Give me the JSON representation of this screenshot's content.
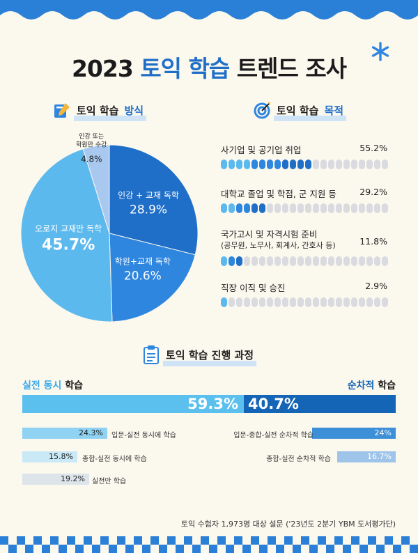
{
  "title": {
    "year": "2023",
    "accent": "토익 학습",
    "rest": "트렌드 조사"
  },
  "sections": {
    "method": {
      "plain": "토익 학습",
      "highlight": "방식"
    },
    "purpose": {
      "plain": "토익 학습",
      "highlight": "목적"
    },
    "process": {
      "text": "토익 학습 진행 과정"
    }
  },
  "colors": {
    "accent": "#1f6fc8",
    "pie": [
      "#1f6fc8",
      "#2f86df",
      "#5cb9ee",
      "#a8c8f0"
    ],
    "dot_active": [
      "#5cb9ee",
      "#2f86df",
      "#1f6fc8"
    ],
    "dot_inactive": "#dadbe0",
    "simultaneous": "#5cc0ee",
    "sequential": "#1565b7"
  },
  "chart_data": [
    {
      "type": "pie",
      "title": "토익 학습 방식",
      "slices": [
        {
          "label": "인강 + 교재 독학",
          "value": 28.9,
          "value_label": "28.9%"
        },
        {
          "label": "학원+교재 독학",
          "value": 20.6,
          "value_label": "20.6%"
        },
        {
          "label": "오로지 교재만 독학",
          "value": 45.7,
          "value_label": "45.7%"
        },
        {
          "label_line1": "인강 또는",
          "label_line2": "학원만 수강",
          "value": 4.8,
          "value_label": "4.8%"
        }
      ]
    },
    {
      "type": "bar",
      "title": "토익 학습 목적",
      "items": [
        {
          "label": "사기업 및 공기업 취업",
          "value": 55.2,
          "value_label": "55.2%"
        },
        {
          "label": "대학교 졸업 및 학점, 군 지원 등",
          "value": 29.2,
          "value_label": "29.2%"
        },
        {
          "label": "국가고시 및 자격시험 준비",
          "sub": "(공무원, 노무사, 회계사, 간호사 등)",
          "value": 11.8,
          "value_label": "11.8%"
        },
        {
          "label": "직장 이직 및 승진",
          "value": 2.9,
          "value_label": "2.9%"
        }
      ]
    },
    {
      "type": "bar",
      "title": "토익 학습 진행 과정",
      "split": {
        "left": {
          "label_highlight": "실전 동시",
          "label_rest": "학습",
          "value": 59.3,
          "value_label": "59.3%"
        },
        "right": {
          "label_highlight": "순차적",
          "label_rest": "학습",
          "value": 40.7,
          "value_label": "40.7%"
        }
      },
      "left_breakdown": [
        {
          "label": "입문-실전 동시에 학습",
          "value": 24.3,
          "value_label": "24.3%"
        },
        {
          "label": "종합-실전 동시에 학습",
          "value": 15.8,
          "value_label": "15.8%"
        },
        {
          "label": "실전만 학습",
          "value": 19.2,
          "value_label": "19.2%"
        }
      ],
      "right_breakdown": [
        {
          "label": "입문-종합-실전 순차적 학습",
          "value": 24,
          "value_label": "24%"
        },
        {
          "label": "종합-실전 순차적 학습",
          "value": 16.7,
          "value_label": "16.7%"
        }
      ]
    }
  ],
  "footer": "토익 수험자 1,973명 대상 설문 ('23년도 2분기 YBM 도서평가단)"
}
